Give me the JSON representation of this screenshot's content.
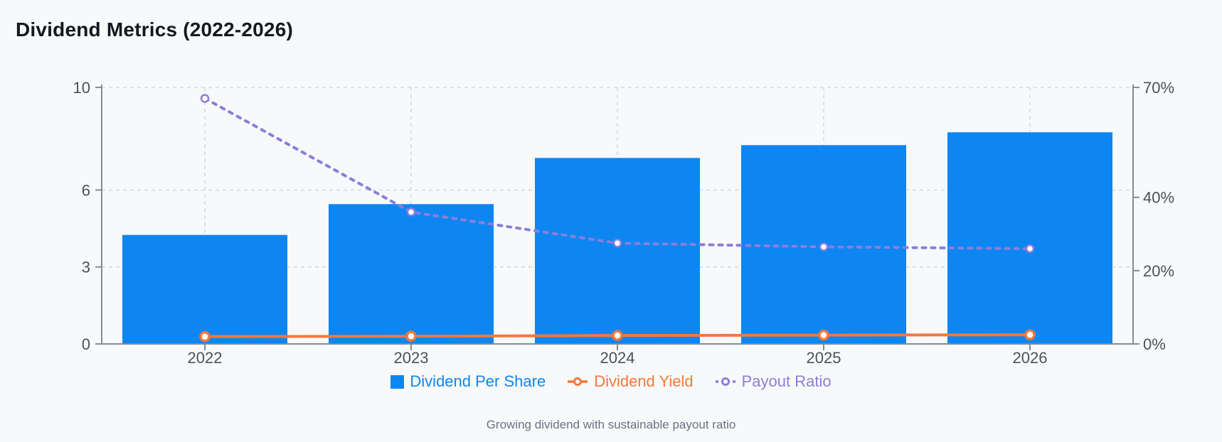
{
  "title": "Dividend Metrics (2022-2026)",
  "subtitle": "Growing dividend with sustainable payout ratio",
  "colors": {
    "background": "#f8f9fa",
    "bar": "#0d86f2",
    "yield_line": "#f4783c",
    "payout_line": "#8b7ed9",
    "grid_line": "#d7d9de",
    "axis_line": "#858b94",
    "tick_text": "#4b515a",
    "title_text": "#14181f",
    "subtitle_text": "#697280"
  },
  "chart_data": {
    "type": "bar",
    "subtype": "combo-bar-line-dual-axis",
    "title": "Dividend Metrics (2022-2026)",
    "categories": [
      "2022",
      "2023",
      "2024",
      "2025",
      "2026"
    ],
    "series": [
      {
        "name": "Dividend Per Share",
        "type": "bar",
        "axis": "left",
        "style": "solid",
        "color": "#0d86f2",
        "values": [
          4.25,
          5.45,
          7.25,
          7.75,
          8.25
        ]
      },
      {
        "name": "Dividend Yield",
        "type": "line",
        "axis": "right",
        "style": "solid",
        "color": "#f4783c",
        "unit": "%",
        "values": [
          2.0,
          2.1,
          2.3,
          2.4,
          2.5
        ]
      },
      {
        "name": "Payout Ratio",
        "type": "line",
        "axis": "right",
        "style": "dashed",
        "color": "#8b7ed9",
        "unit": "%",
        "values": [
          67,
          36,
          27.5,
          26.5,
          26
        ]
      }
    ],
    "left_axis": {
      "min": 0,
      "max": 10,
      "ticks": [
        0,
        3,
        6,
        10
      ],
      "labels": [
        "0",
        "3",
        "6",
        "10"
      ]
    },
    "right_axis": {
      "min": 0,
      "max": 70,
      "ticks": [
        0,
        20,
        40,
        70
      ],
      "labels": [
        "0%",
        "20%",
        "40%",
        "70%"
      ]
    },
    "grid": "dashed",
    "legend_position": "bottom",
    "annotations": "Growing dividend with sustainable payout ratio"
  }
}
